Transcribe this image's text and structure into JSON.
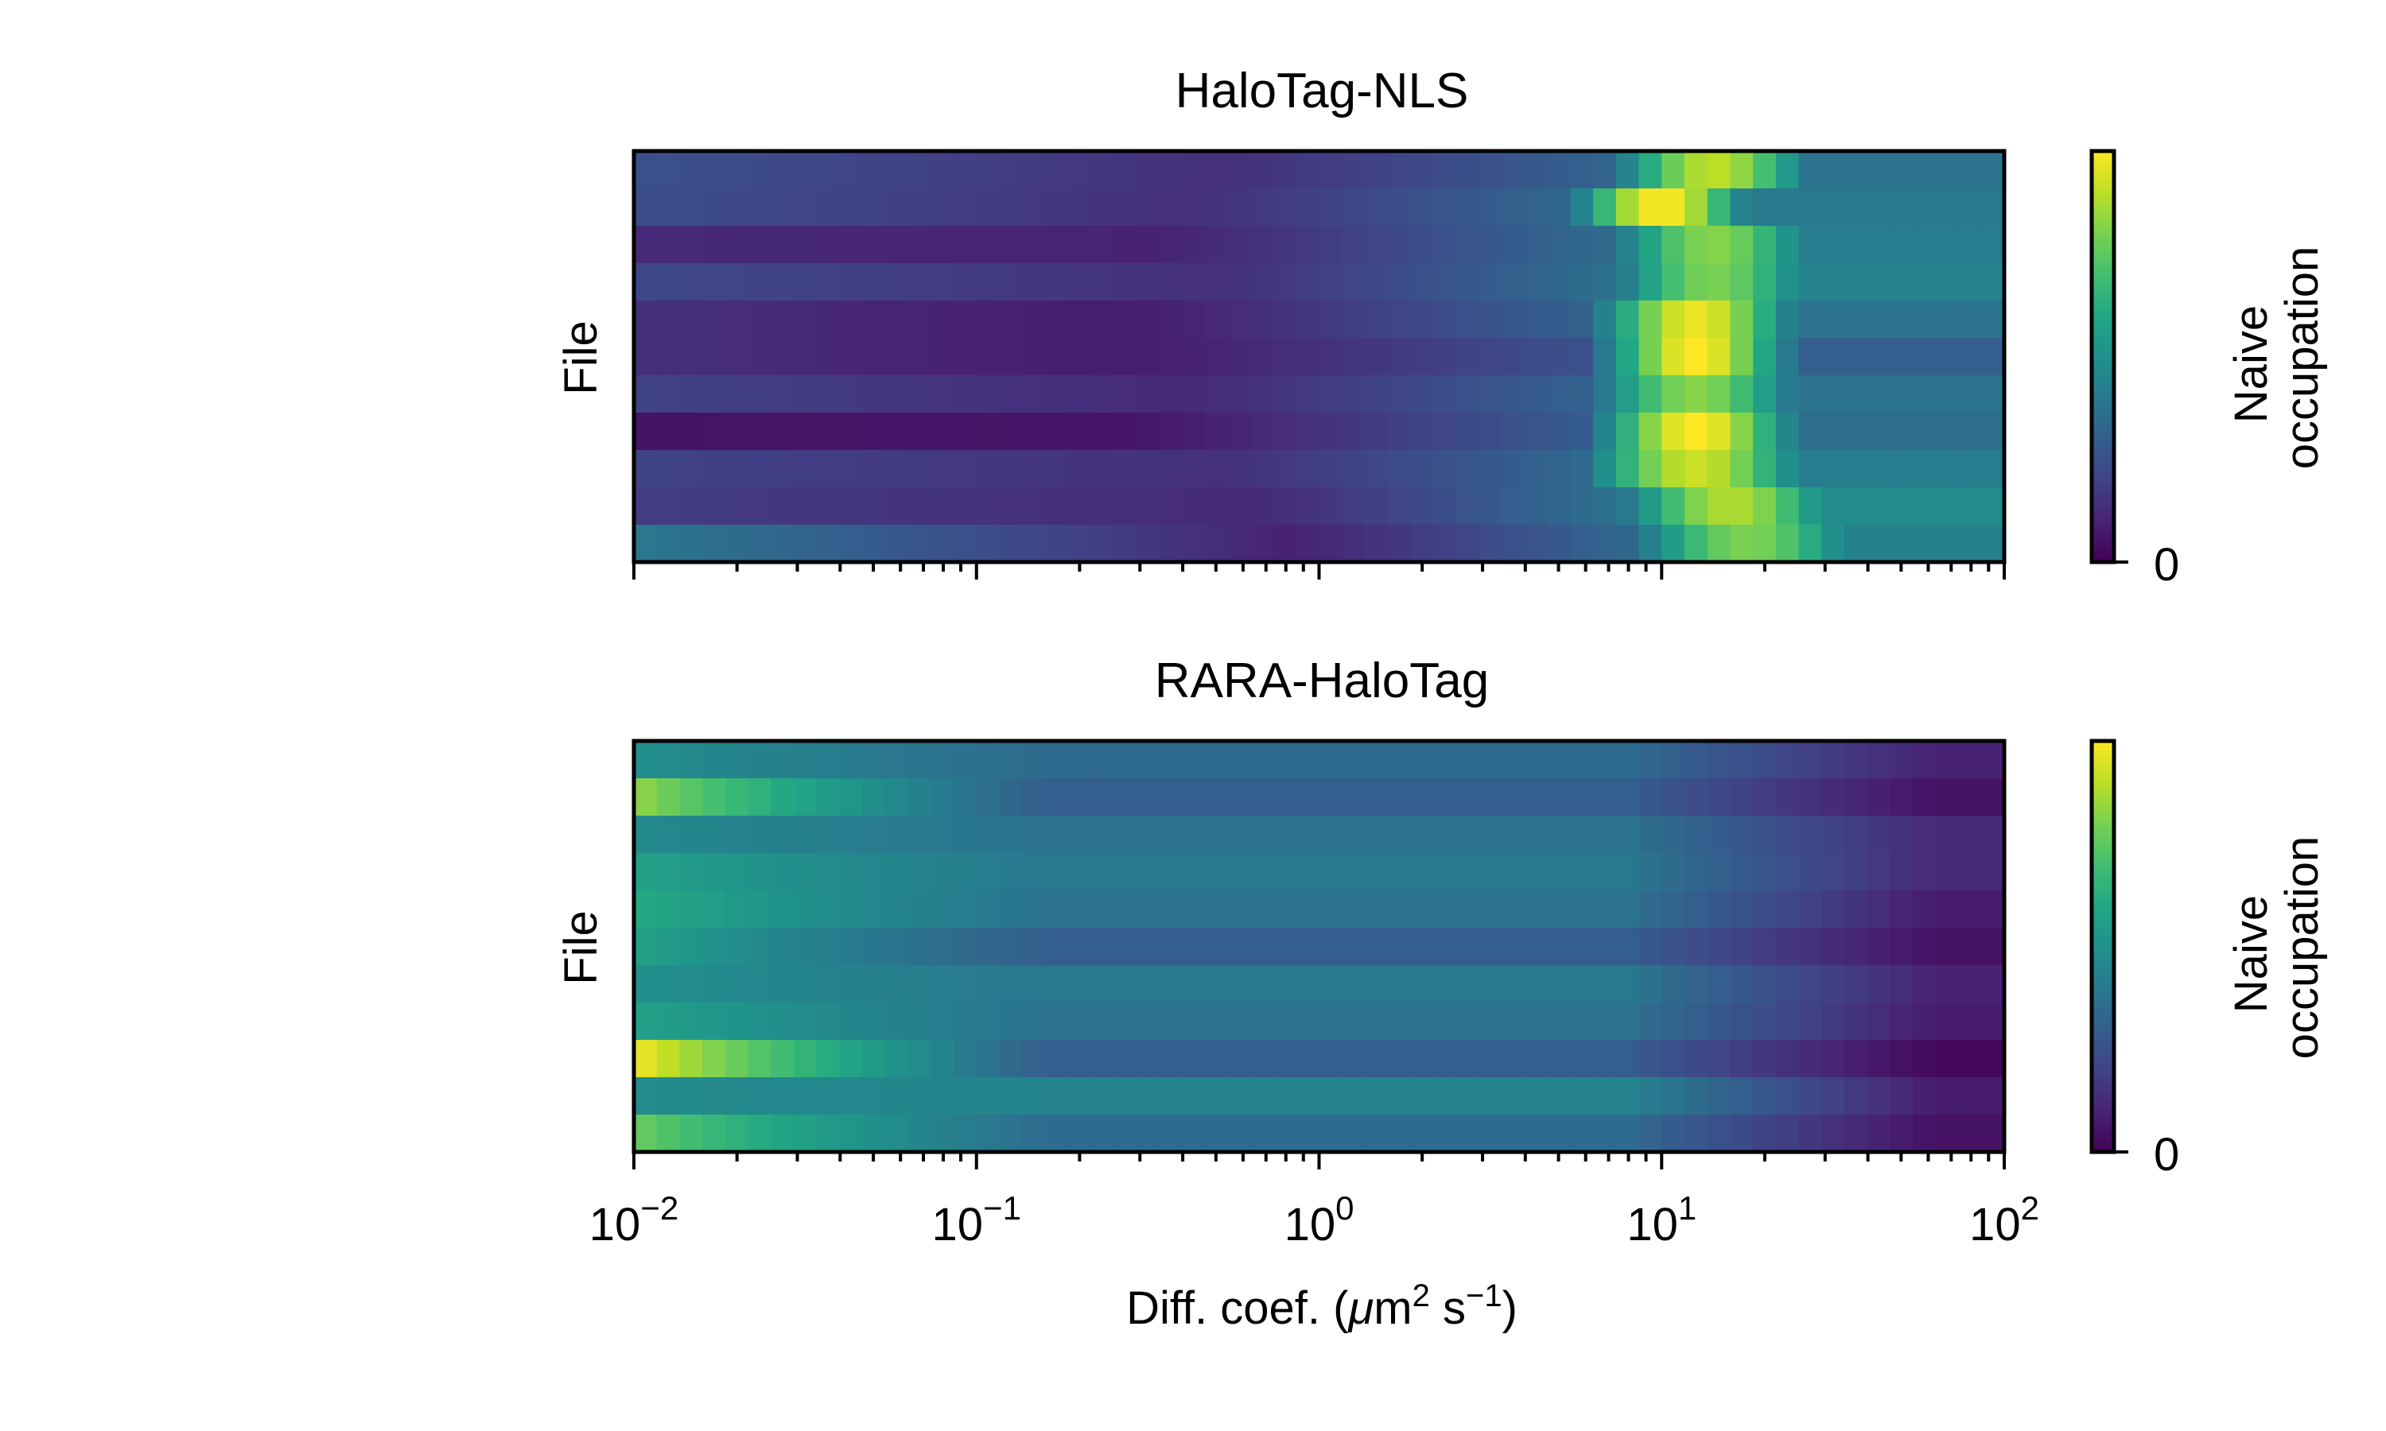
{
  "chart_data": [
    {
      "type": "heatmap",
      "title": "HaloTag-NLS",
      "xlabel": "",
      "ylabel": "File",
      "x_scale": "log",
      "xlim": [
        0.01,
        100
      ],
      "rows": 11,
      "colorbar": {
        "label": "Naive occupation",
        "ticks": [
          "0"
        ]
      },
      "colormap": "viridis",
      "row_profiles": [
        {
          "left": 0.25,
          "valley_logD": -0.3,
          "valley": 0.14,
          "peak_logD": 1.15,
          "peak": 0.9,
          "peak_width": 0.3,
          "right": 0.38
        },
        {
          "left": 0.24,
          "valley_logD": -0.4,
          "valley": 0.14,
          "peak_logD": 1.0,
          "peak": 1.0,
          "peak_width": 0.26,
          "right": 0.4
        },
        {
          "left": 0.12,
          "valley_logD": -0.5,
          "valley": 0.1,
          "peak_logD": 1.15,
          "peak": 0.82,
          "peak_width": 0.32,
          "right": 0.42
        },
        {
          "left": 0.22,
          "valley_logD": -0.3,
          "valley": 0.14,
          "peak_logD": 1.15,
          "peak": 0.8,
          "peak_width": 0.32,
          "right": 0.45
        },
        {
          "left": 0.14,
          "valley_logD": -0.6,
          "valley": 0.08,
          "peak_logD": 1.1,
          "peak": 0.97,
          "peak_width": 0.3,
          "right": 0.38
        },
        {
          "left": 0.14,
          "valley_logD": -0.6,
          "valley": 0.08,
          "peak_logD": 1.1,
          "peak": 1.0,
          "peak_width": 0.28,
          "right": 0.3
        },
        {
          "left": 0.2,
          "valley_logD": -0.4,
          "valley": 0.12,
          "peak_logD": 1.1,
          "peak": 0.82,
          "peak_width": 0.32,
          "right": 0.38
        },
        {
          "left": 0.05,
          "valley_logD": -0.6,
          "valley": 0.06,
          "peak_logD": 1.1,
          "peak": 1.0,
          "peak_width": 0.3,
          "right": 0.36
        },
        {
          "left": 0.2,
          "valley_logD": -0.3,
          "valley": 0.14,
          "peak_logD": 1.1,
          "peak": 0.92,
          "peak_width": 0.34,
          "right": 0.42
        },
        {
          "left": 0.18,
          "valley_logD": -0.2,
          "valley": 0.12,
          "peak_logD": 1.2,
          "peak": 0.88,
          "peak_width": 0.34,
          "right": 0.48
        },
        {
          "left": 0.4,
          "valley_logD": -0.1,
          "valley": 0.1,
          "peak_logD": 1.25,
          "peak": 0.8,
          "peak_width": 0.36,
          "right": 0.44
        }
      ]
    },
    {
      "type": "heatmap",
      "title": "RARA-HaloTag",
      "xlabel": "Diff. coef. (μm² s⁻¹)",
      "ylabel": "File",
      "x_scale": "log",
      "xlim": [
        0.01,
        100
      ],
      "rows": 11,
      "colorbar": {
        "label": "Naive occupation",
        "ticks": [
          "0"
        ]
      },
      "colormap": "viridis",
      "row_profiles": [
        {
          "left": 0.5,
          "mid": 0.35,
          "right": 0.1
        },
        {
          "left": 0.85,
          "mid": 0.3,
          "right": 0.05
        },
        {
          "left": 0.48,
          "mid": 0.38,
          "right": 0.12
        },
        {
          "left": 0.58,
          "mid": 0.4,
          "right": 0.12
        },
        {
          "left": 0.62,
          "mid": 0.38,
          "right": 0.08
        },
        {
          "left": 0.58,
          "mid": 0.3,
          "right": 0.05
        },
        {
          "left": 0.5,
          "mid": 0.4,
          "right": 0.1
        },
        {
          "left": 0.58,
          "mid": 0.38,
          "right": 0.08
        },
        {
          "left": 1.0,
          "mid": 0.3,
          "right": 0.02
        },
        {
          "left": 0.48,
          "mid": 0.45,
          "right": 0.08
        },
        {
          "left": 0.78,
          "mid": 0.35,
          "right": 0.05
        }
      ]
    }
  ],
  "x_ticks": [
    {
      "base": "10",
      "exp": "−2"
    },
    {
      "base": "10",
      "exp": "−1"
    },
    {
      "base": "10",
      "exp": "0"
    },
    {
      "base": "10",
      "exp": "1"
    },
    {
      "base": "10",
      "exp": "2"
    }
  ],
  "xlabel_parts": {
    "pre": "Diff. coef. (",
    "mu": "μ",
    "m": "m",
    "sup1": "2",
    "mid": " s",
    "sup2": "−1",
    "post": ")"
  }
}
